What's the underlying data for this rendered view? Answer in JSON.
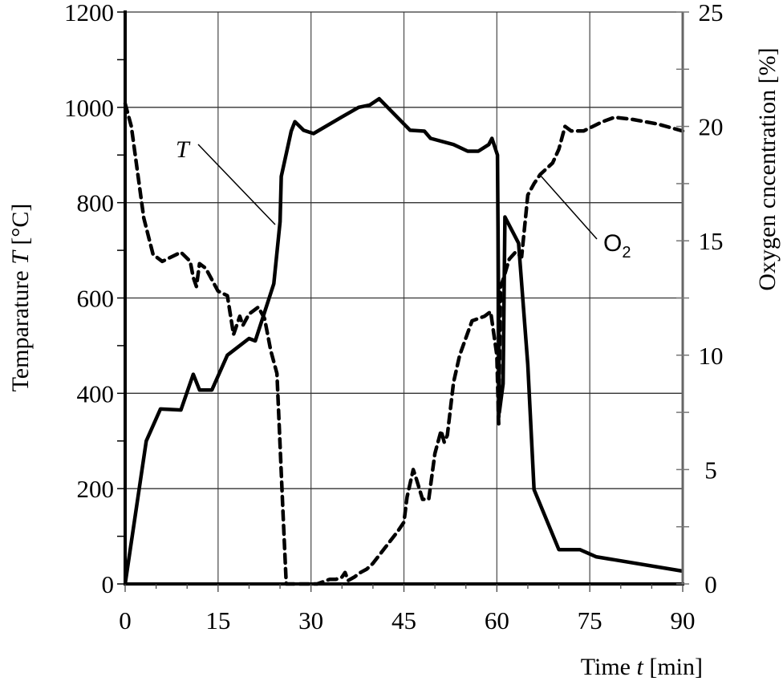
{
  "chart_data": {
    "type": "line",
    "title": "",
    "xlabel": "Time t [min]",
    "ylabel": "Temparature T [°C]",
    "y2label": "Oxygen cncentration [%]",
    "xlim": [
      0,
      90
    ],
    "ylim": [
      0,
      1200
    ],
    "y2lim": [
      0,
      25
    ],
    "xticks": [
      0,
      15,
      30,
      45,
      60,
      75,
      90
    ],
    "yticks": [
      0,
      200,
      400,
      600,
      800,
      1000,
      1200
    ],
    "y2ticks": [
      0,
      5,
      10,
      15,
      20,
      25
    ],
    "grid": true,
    "legend": "inline annotations",
    "annotations": [
      {
        "text": "T",
        "italic": true,
        "target_series": "T"
      },
      {
        "text": "O2",
        "target_series": "O2"
      }
    ],
    "series": [
      {
        "name": "T",
        "axis": "left",
        "style": "solid",
        "x": [
          0,
          3.4,
          5.7,
          9,
          11,
          12,
          14,
          16.5,
          20,
          21,
          24,
          25,
          25.2,
          26.8,
          27.4,
          28.8,
          30.4,
          35,
          37.7,
          39.5,
          41,
          46,
          48.3,
          49.3,
          53,
          55.3,
          57,
          58.7,
          59.2,
          60.1,
          60.4,
          61,
          61.3,
          63.5,
          65,
          66,
          70,
          73.4,
          76,
          90
        ],
        "values": [
          0,
          300,
          367,
          365,
          440,
          407,
          407,
          480,
          515,
          510,
          630,
          760,
          855,
          950,
          970,
          952,
          945,
          980,
          1000,
          1005,
          1018,
          952,
          950,
          935,
          922,
          908,
          908,
          922,
          935,
          900,
          360,
          420,
          770,
          715,
          460,
          198,
          72,
          72,
          57,
          27
        ]
      },
      {
        "name": "O2",
        "axis": "right",
        "style": "dashed",
        "x": [
          0,
          1,
          3,
          4.5,
          6,
          9,
          10.5,
          11,
          11.5,
          12,
          13,
          15,
          16.5,
          17.5,
          18.5,
          19,
          20,
          21.5,
          22.5,
          23.5,
          24.5,
          25.5,
          26,
          30,
          31,
          33,
          34,
          35,
          35.5,
          36,
          37,
          38,
          39,
          40,
          42,
          44,
          45,
          45.5,
          46.5,
          47,
          48,
          49,
          50,
          51,
          51.5,
          52,
          53,
          54,
          56,
          58,
          59,
          60,
          60.3,
          60.6,
          61,
          62,
          63,
          64,
          65,
          66,
          67,
          69,
          70,
          71,
          72,
          74,
          77,
          79,
          82,
          86,
          90
        ],
        "values": [
          21,
          20,
          16,
          14.4,
          14.1,
          14.5,
          14.1,
          13.4,
          13,
          14,
          13.8,
          12.8,
          12.6,
          10.9,
          11.7,
          11.3,
          11.8,
          12.1,
          11.6,
          10.2,
          9.2,
          3,
          0,
          0,
          0,
          0.2,
          0.2,
          0.3,
          0.5,
          0.15,
          0.3,
          0.5,
          0.65,
          0.9,
          1.6,
          2.3,
          2.7,
          3.8,
          5,
          4.6,
          3.7,
          3.7,
          5.7,
          6.7,
          6.2,
          6.5,
          8.8,
          10,
          11.5,
          11.7,
          11.9,
          10,
          7,
          13,
          13.3,
          14.2,
          14.5,
          14.3,
          17,
          17.5,
          17.9,
          18.4,
          19,
          20,
          19.8,
          19.8,
          20.2,
          20.4,
          20.3,
          20.1,
          19.8
        ]
      }
    ]
  },
  "axes": {
    "x_title": "Time",
    "x_title_var": "t",
    "x_title_unit": "[min]",
    "y_title": "Temparature",
    "y_title_var": "T",
    "y_title_unit": "[°C]",
    "y2_title": "Oxygen cncentration [%]"
  },
  "labels": {
    "t_series": "T",
    "o2_series": "O",
    "o2_sub": "2"
  }
}
